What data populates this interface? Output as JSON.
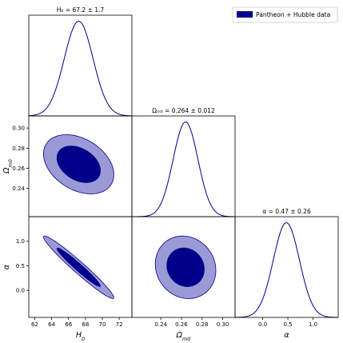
{
  "legend": {
    "label": "Pantheon + Hubble data",
    "placement": "top-right"
  },
  "colors": {
    "line": "#00008b",
    "inner": "#00008b",
    "outer": "#9a9ad6"
  },
  "parameters": [
    {
      "id": "H0",
      "axis_base": "H",
      "axis_sub": "0",
      "title": "H₀ = 67.2 ± 1.7",
      "mean": 67.2,
      "sigma": 1.7,
      "range": [
        61.3,
        73.5
      ],
      "ticks": [
        62,
        64,
        66,
        68,
        70,
        72
      ],
      "tick_labels": [
        "62",
        "64",
        "66",
        "68",
        "70",
        "72"
      ]
    },
    {
      "id": "Om0",
      "axis_base": "Ω",
      "axis_sub": "m0",
      "title": "Ωₘ₀ = 0.264 ± 0.012",
      "mean": 0.264,
      "sigma": 0.012,
      "range": [
        0.212,
        0.312
      ],
      "ticks": [
        0.24,
        0.26,
        0.28,
        0.3
      ],
      "tick_labels": [
        "0.24",
        "0.26",
        "0.28",
        "0.30"
      ]
    },
    {
      "id": "alpha",
      "axis_base": "α",
      "axis_sub": "",
      "title": "α = 0.47 ± 0.26",
      "mean": 0.47,
      "sigma": 0.26,
      "range": [
        -0.55,
        1.5
      ],
      "ticks": [
        0.0,
        0.5,
        1.0
      ],
      "tick_labels": [
        "0.0",
        "0.5",
        "1.0"
      ]
    }
  ],
  "chart_data": {
    "type": "corner",
    "series": [
      {
        "name": "Pantheon + Hubble data"
      }
    ],
    "marginals": [
      {
        "param": "H0",
        "mean": 67.2,
        "sigma": 1.7
      },
      {
        "param": "Om0",
        "mean": 0.264,
        "sigma": 0.012
      },
      {
        "param": "alpha",
        "mean": 0.47,
        "sigma": 0.26
      }
    ],
    "contours_2d": [
      {
        "x": "H0",
        "y": "Om0",
        "correlation": -0.35,
        "levels": [
          "68%",
          "95%"
        ]
      },
      {
        "x": "H0",
        "y": "alpha",
        "correlation": -0.97,
        "levels": [
          "68%",
          "95%"
        ]
      },
      {
        "x": "Om0",
        "y": "alpha",
        "correlation": -0.1,
        "levels": [
          "68%",
          "95%"
        ]
      }
    ]
  }
}
